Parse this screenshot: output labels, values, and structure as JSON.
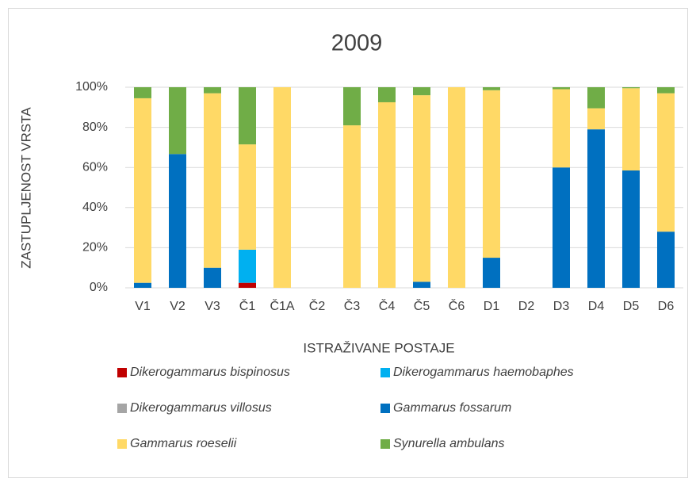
{
  "chart_data": {
    "type": "stacked_bar",
    "title": "2009",
    "y_label": "ZASTUPLJENOST VRSTA",
    "x_label": "ISTRAŽIVANE POSTAJE",
    "categories": [
      "V1",
      "V2",
      "V3",
      "Č1",
      "Č1A",
      "Č2",
      "Č3",
      "Č4",
      "Č5",
      "Č6",
      "D1",
      "D2",
      "D3",
      "D4",
      "D5",
      "D6"
    ],
    "series": [
      {
        "name": "Dikerogammarus bispinosus",
        "color": "#c00000",
        "values": [
          0,
          0,
          0,
          2.5,
          0,
          0,
          0,
          0,
          0,
          0,
          0,
          0,
          0,
          0,
          0,
          0
        ]
      },
      {
        "name": "Dikerogammarus haemobaphes",
        "color": "#00b0f0",
        "values": [
          0,
          0,
          0,
          16.5,
          0,
          0,
          0,
          0,
          0,
          0,
          0,
          0,
          0,
          0,
          0,
          0
        ]
      },
      {
        "name": "Dikerogammarus villosus",
        "color": "#a5a5a5",
        "values": [
          0,
          0,
          0,
          0,
          0,
          0,
          0,
          0,
          0,
          0,
          0,
          0,
          0,
          0,
          0,
          0
        ]
      },
      {
        "name": "Gammarus fossarum",
        "color": "#0070c0",
        "values": [
          2.5,
          66.7,
          10,
          0,
          0,
          0,
          0,
          0,
          3,
          0,
          15,
          0,
          60,
          79,
          58.5,
          28
        ]
      },
      {
        "name": "Gammarus roeselii",
        "color": "#ffd966",
        "values": [
          92,
          0,
          87,
          52.5,
          100,
          0,
          81,
          92.5,
          93,
          100,
          83.5,
          0,
          39,
          10.5,
          41,
          69
        ]
      },
      {
        "name": "Synurella ambulans",
        "color": "#70ad47",
        "values": [
          5.5,
          33.3,
          3,
          28.5,
          0,
          0,
          19,
          7.5,
          4,
          0,
          1.5,
          0,
          1,
          10.5,
          0.5,
          3
        ]
      }
    ],
    "ylim": [
      0,
      100
    ],
    "yticks": [
      {
        "value": 0,
        "label": "0%"
      },
      {
        "value": 20,
        "label": "20%"
      },
      {
        "value": 40,
        "label": "40%"
      },
      {
        "value": 60,
        "label": "60%"
      },
      {
        "value": 80,
        "label": "80%"
      },
      {
        "value": 100,
        "label": "100%"
      }
    ],
    "grid": true,
    "legend": "bottom"
  }
}
